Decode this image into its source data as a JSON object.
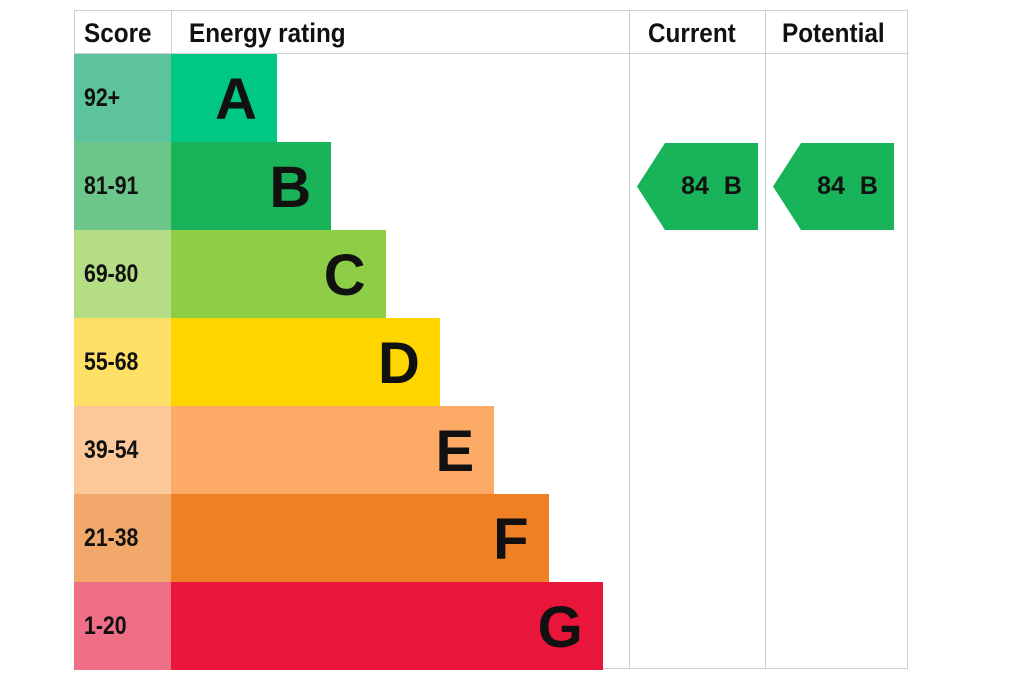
{
  "headers": {
    "score": "Score",
    "rating": "Energy rating",
    "current": "Current",
    "potential": "Potential"
  },
  "chart_data": {
    "type": "bar",
    "bands": [
      {
        "score": "92+",
        "letter": "A",
        "color": "#00c781",
        "score_color": "#5cc39a"
      },
      {
        "score": "81-91",
        "letter": "B",
        "color": "#19b459",
        "score_color": "#6cc68a"
      },
      {
        "score": "69-80",
        "letter": "C",
        "color": "#8dce46",
        "score_color": "#b4dd86"
      },
      {
        "score": "55-68",
        "letter": "D",
        "color": "#ffd500",
        "score_color": "#ffe066"
      },
      {
        "score": "39-54",
        "letter": "E",
        "color": "#fcaa65",
        "score_color": "#fcc89a"
      },
      {
        "score": "21-38",
        "letter": "F",
        "color": "#ef8023",
        "score_color": "#f2a86a"
      },
      {
        "score": "1-20",
        "letter": "G",
        "color": "#e9153b",
        "score_color": "#ee6f86"
      }
    ],
    "current": {
      "value": 84,
      "letter": "B",
      "label": "84 B",
      "color": "#19b459"
    },
    "potential": {
      "value": 84,
      "letter": "B",
      "label": "84 B",
      "color": "#19b459"
    }
  }
}
